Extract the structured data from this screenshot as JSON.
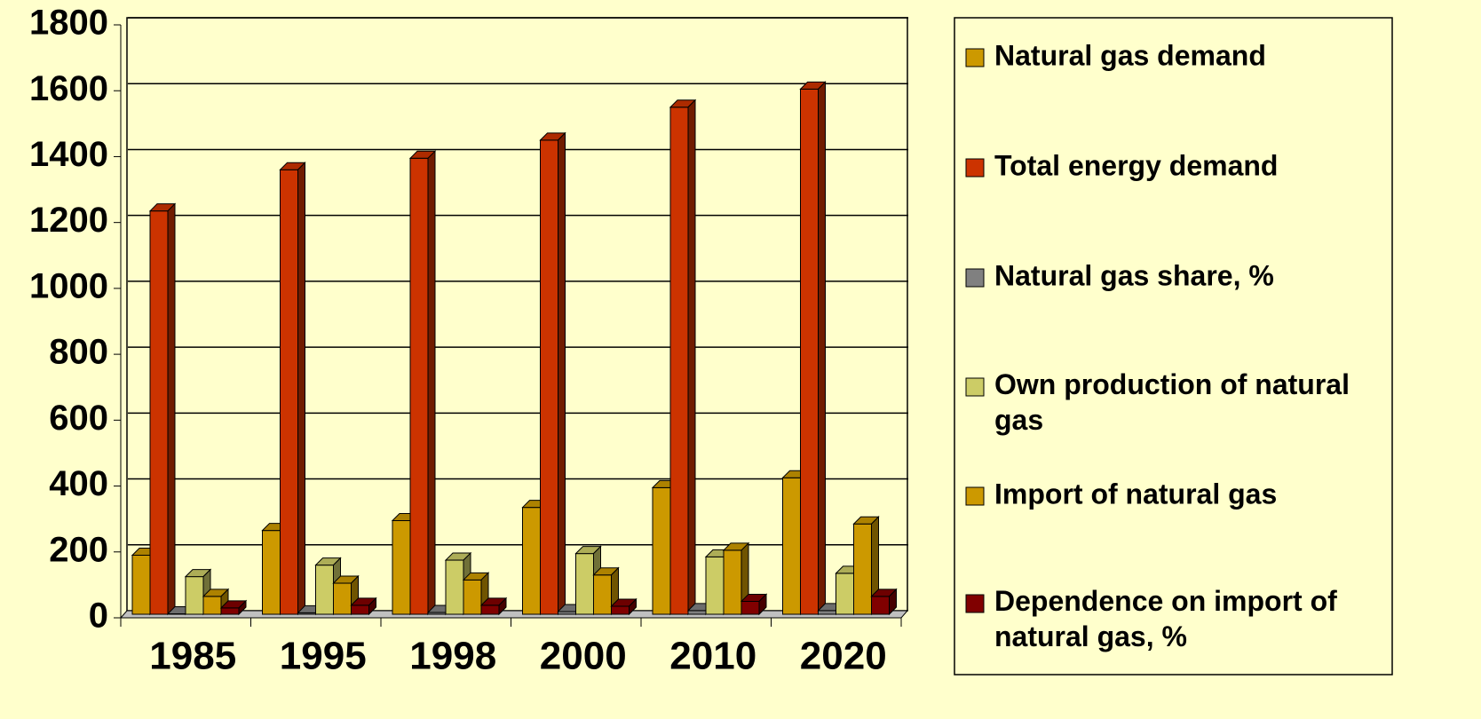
{
  "chart_data": {
    "type": "bar3d",
    "categories": [
      "1985",
      "1995",
      "1998",
      "2000",
      "2010",
      "2020"
    ],
    "series": [
      {
        "name": "Natural gas demand",
        "color": "#CC9900",
        "values": [
          190,
          265,
          295,
          335,
          395,
          425
        ]
      },
      {
        "name": "Total energy demand",
        "color": "#CC3300",
        "values": [
          1235,
          1360,
          1395,
          1450,
          1550,
          1605
        ]
      },
      {
        "name": "Natural gas share, %",
        "color": "#808080",
        "values": [
          12,
          15,
          16,
          19,
          22,
          22
        ]
      },
      {
        "name": "Own production of natural gas",
        "color": "#CCCC66",
        "values": [
          125,
          160,
          175,
          195,
          185,
          135
        ]
      },
      {
        "name": "Import of natural gas",
        "color": "#CC9900",
        "values": [
          65,
          105,
          115,
          130,
          205,
          285
        ]
      },
      {
        "name": "Dependence on import of natural gas, %",
        "color": "#800000",
        "values": [
          30,
          38,
          38,
          35,
          50,
          65
        ]
      }
    ],
    "ylim": [
      0,
      1800
    ],
    "yticks": [
      0,
      200,
      400,
      600,
      800,
      1000,
      1200,
      1400,
      1600,
      1800
    ],
    "grid": true,
    "legend": "right"
  }
}
